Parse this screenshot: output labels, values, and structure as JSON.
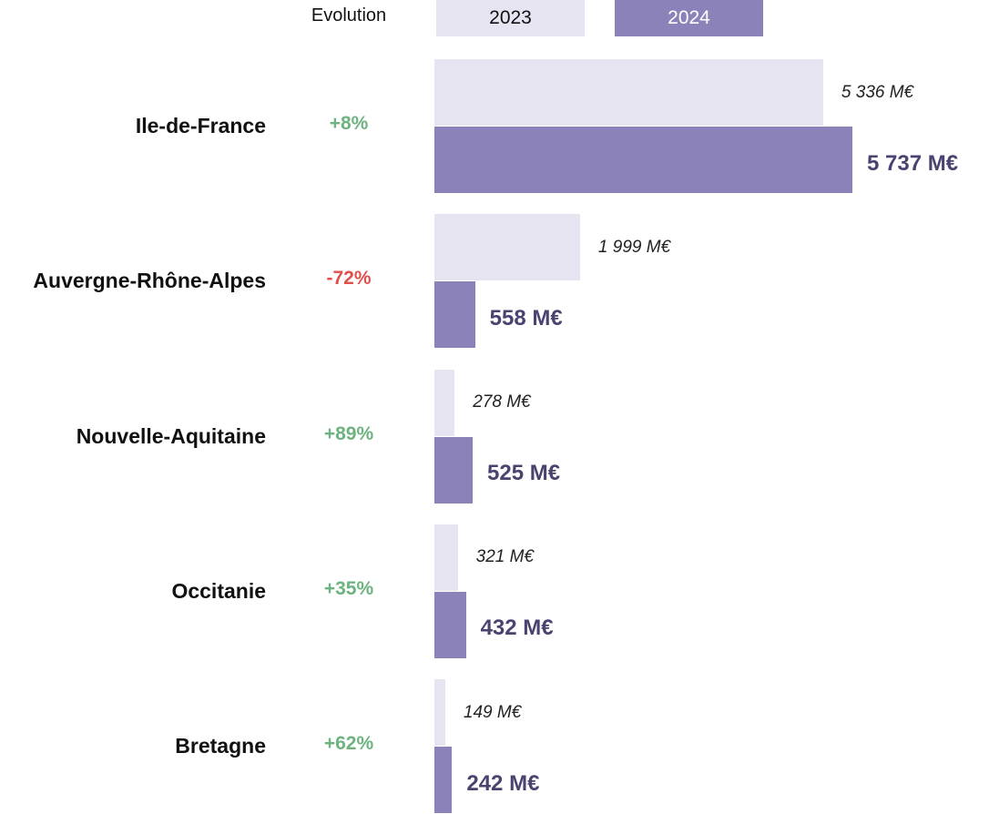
{
  "chart_data": {
    "type": "bar",
    "evolution": {
      "label": "Evolution",
      "values": [
        8,
        -72,
        89,
        35,
        62
      ],
      "value_labels": [
        "+8%",
        "-72%",
        "+89%",
        "+35%",
        "+62%"
      ],
      "colors": {
        "up": "#6db37f",
        "down": "#e0504a"
      }
    },
    "categories": [
      "Ile-de-France",
      "Auvergne-Rhône-Alpes",
      "Nouvelle-Aquitaine",
      "Occitanie",
      "Bretagne"
    ],
    "series": [
      {
        "name": "2023",
        "color": "#e6e4f0",
        "values": [
          5336,
          1999,
          278,
          321,
          149
        ],
        "value_labels": [
          "5 336 M€",
          "1 999 M€",
          "278 M€",
          "321 M€",
          "149 M€"
        ]
      },
      {
        "name": "2024",
        "color": "#8a82b8",
        "values": [
          5737,
          558,
          525,
          432,
          242
        ],
        "value_labels": [
          "5 737 M€",
          "558 M€",
          "525 M€",
          "432 M€",
          "242 M€"
        ]
      }
    ]
  }
}
